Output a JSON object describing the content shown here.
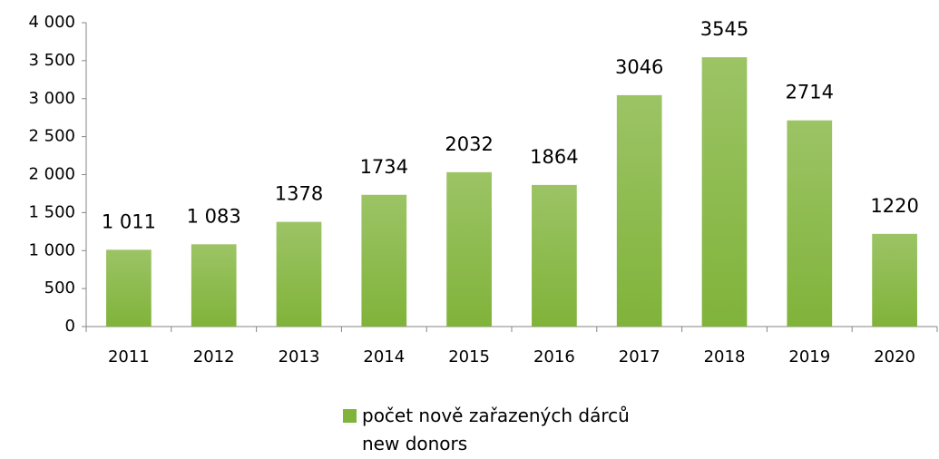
{
  "chart_data": {
    "type": "bar",
    "categories": [
      "2011",
      "2012",
      "2013",
      "2014",
      "2015",
      "2016",
      "2017",
      "2018",
      "2019",
      "2020"
    ],
    "series": [
      {
        "name": "počet nově zařazených dárců\nnew donors",
        "color": "#80b33a",
        "values": [
          1011,
          1083,
          1378,
          1734,
          2032,
          1864,
          3046,
          3545,
          2714,
          1220
        ],
        "value_labels": [
          "1 011",
          "1 083",
          "1378",
          "1734",
          "2032",
          "1864",
          "3046",
          "3545",
          "2714",
          "1220"
        ]
      }
    ],
    "ylim": [
      0,
      4000
    ],
    "yticks": [
      0,
      500,
      {
        "value": 1000,
        "label": "1 000"
      },
      {
        "value": 1500,
        "label": "1 500"
      },
      {
        "value": 2000,
        "label": "2 000"
      },
      {
        "value": 2500,
        "label": "2 500"
      },
      {
        "value": 3000,
        "label": "3 000"
      },
      {
        "value": 3500,
        "label": "3 500"
      },
      {
        "value": 4000,
        "label": "4 000"
      }
    ],
    "grid": false,
    "legend": "bottom"
  }
}
